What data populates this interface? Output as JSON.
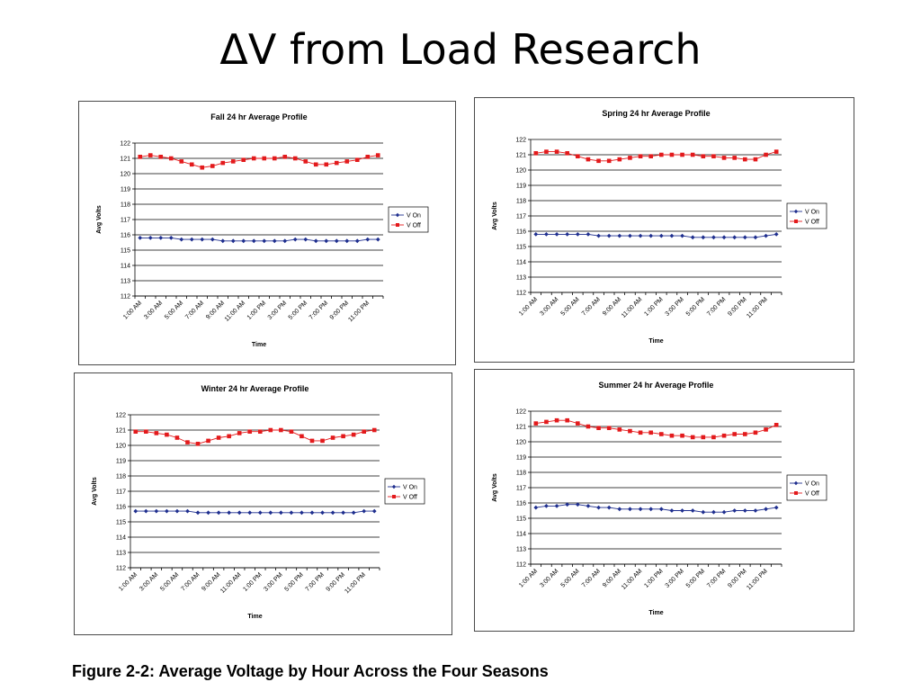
{
  "slide": {
    "title": "ΔV from Load Research",
    "caption": "Figure 2-2:  Average Voltage by Hour Across the Four Seasons"
  },
  "colors": {
    "v_on": "#1f2f8f",
    "v_off": "#e31a1c"
  },
  "chart_data": [
    {
      "type": "line",
      "title": "Fall 24 hr Average Profile",
      "xlabel": "Time",
      "ylabel": "Avg Volts",
      "ylim": [
        112,
        122
      ],
      "yticks": [
        112,
        113,
        114,
        115,
        116,
        117,
        118,
        119,
        120,
        121,
        122
      ],
      "grid": true,
      "legend": "right",
      "x": [
        "1:00 AM",
        "2:00 AM",
        "3:00 AM",
        "4:00 AM",
        "5:00 AM",
        "6:00 AM",
        "7:00 AM",
        "8:00 AM",
        "9:00 AM",
        "10:00 AM",
        "11:00 AM",
        "12:00 PM",
        "1:00 PM",
        "2:00 PM",
        "3:00 PM",
        "4:00 PM",
        "5:00 PM",
        "6:00 PM",
        "7:00 PM",
        "8:00 PM",
        "9:00 PM",
        "10:00 PM",
        "11:00 PM",
        "12:00 AM"
      ],
      "xtick_labels": [
        "1:00 AM",
        "3:00 AM",
        "5:00 AM",
        "7:00 AM",
        "9:00 AM",
        "11:00 AM",
        "1:00 PM",
        "3:00 PM",
        "5:00 PM",
        "7:00 PM",
        "9:00 PM",
        "11:00 PM"
      ],
      "series": [
        {
          "name": "V On",
          "values": [
            115.8,
            115.8,
            115.8,
            115.8,
            115.7,
            115.7,
            115.7,
            115.7,
            115.6,
            115.6,
            115.6,
            115.6,
            115.6,
            115.6,
            115.6,
            115.7,
            115.7,
            115.6,
            115.6,
            115.6,
            115.6,
            115.6,
            115.7,
            115.7
          ]
        },
        {
          "name": "V Off",
          "values": [
            121.1,
            121.2,
            121.1,
            121.0,
            120.8,
            120.6,
            120.4,
            120.5,
            120.7,
            120.8,
            120.9,
            121.0,
            121.0,
            121.0,
            121.1,
            121.0,
            120.8,
            120.6,
            120.6,
            120.7,
            120.8,
            120.9,
            121.1,
            121.2
          ]
        }
      ]
    },
    {
      "type": "line",
      "title": "Spring 24 hr Average Profile",
      "xlabel": "Time",
      "ylabel": "Avg Volts",
      "ylim": [
        112,
        122
      ],
      "yticks": [
        112,
        113,
        114,
        115,
        116,
        117,
        118,
        119,
        120,
        121,
        122
      ],
      "grid": true,
      "legend": "right",
      "x": [
        "1:00 AM",
        "2:00 AM",
        "3:00 AM",
        "4:00 AM",
        "5:00 AM",
        "6:00 AM",
        "7:00 AM",
        "8:00 AM",
        "9:00 AM",
        "10:00 AM",
        "11:00 AM",
        "12:00 PM",
        "1:00 PM",
        "2:00 PM",
        "3:00 PM",
        "4:00 PM",
        "5:00 PM",
        "6:00 PM",
        "7:00 PM",
        "8:00 PM",
        "9:00 PM",
        "10:00 PM",
        "11:00 PM",
        "12:00 AM"
      ],
      "xtick_labels": [
        "1:00 AM",
        "3:00 AM",
        "5:00 AM",
        "7:00 AM",
        "9:00 AM",
        "11:00 AM",
        "1:00 PM",
        "3:00 PM",
        "5:00 PM",
        "7:00 PM",
        "9:00 PM",
        "11:00 PM"
      ],
      "series": [
        {
          "name": "V On",
          "values": [
            115.8,
            115.8,
            115.8,
            115.8,
            115.8,
            115.8,
            115.7,
            115.7,
            115.7,
            115.7,
            115.7,
            115.7,
            115.7,
            115.7,
            115.7,
            115.6,
            115.6,
            115.6,
            115.6,
            115.6,
            115.6,
            115.6,
            115.7,
            115.8
          ]
        },
        {
          "name": "V Off",
          "values": [
            121.1,
            121.2,
            121.2,
            121.1,
            120.9,
            120.7,
            120.6,
            120.6,
            120.7,
            120.8,
            120.9,
            120.9,
            121.0,
            121.0,
            121.0,
            121.0,
            120.9,
            120.9,
            120.8,
            120.8,
            120.7,
            120.7,
            121.0,
            121.2
          ]
        }
      ]
    },
    {
      "type": "line",
      "title": "Winter 24 hr Average Profile",
      "xlabel": "Time",
      "ylabel": "Avg Volts",
      "ylim": [
        112,
        122
      ],
      "yticks": [
        112,
        113,
        114,
        115,
        116,
        117,
        118,
        119,
        120,
        121,
        122
      ],
      "grid": true,
      "legend": "right",
      "x": [
        "1:00 AM",
        "2:00 AM",
        "3:00 AM",
        "4:00 AM",
        "5:00 AM",
        "6:00 AM",
        "7:00 AM",
        "8:00 AM",
        "9:00 AM",
        "10:00 AM",
        "11:00 AM",
        "12:00 PM",
        "1:00 PM",
        "2:00 PM",
        "3:00 PM",
        "4:00 PM",
        "5:00 PM",
        "6:00 PM",
        "7:00 PM",
        "8:00 PM",
        "9:00 PM",
        "10:00 PM",
        "11:00 PM",
        "12:00 AM"
      ],
      "xtick_labels": [
        "1:00 AM",
        "3:00 AM",
        "5:00 AM",
        "7:00 AM",
        "9:00 AM",
        "11:00 AM",
        "1:00 PM",
        "3:00 PM",
        "5:00 PM",
        "7:00 PM",
        "9:00 PM",
        "11:00 PM"
      ],
      "series": [
        {
          "name": "V On",
          "values": [
            115.7,
            115.7,
            115.7,
            115.7,
            115.7,
            115.7,
            115.6,
            115.6,
            115.6,
            115.6,
            115.6,
            115.6,
            115.6,
            115.6,
            115.6,
            115.6,
            115.6,
            115.6,
            115.6,
            115.6,
            115.6,
            115.6,
            115.7,
            115.7
          ]
        },
        {
          "name": "V Off",
          "values": [
            120.9,
            120.9,
            120.8,
            120.7,
            120.5,
            120.2,
            120.1,
            120.3,
            120.5,
            120.6,
            120.8,
            120.9,
            120.9,
            121.0,
            121.0,
            120.9,
            120.6,
            120.3,
            120.3,
            120.5,
            120.6,
            120.7,
            120.9,
            121.0
          ]
        }
      ]
    },
    {
      "type": "line",
      "title": "Summer 24 hr Average Profile",
      "xlabel": "Time",
      "ylabel": "Avg Volts",
      "ylim": [
        112,
        122
      ],
      "yticks": [
        112,
        113,
        114,
        115,
        116,
        117,
        118,
        119,
        120,
        121,
        122
      ],
      "grid": true,
      "legend": "right",
      "x": [
        "1:00 AM",
        "2:00 AM",
        "3:00 AM",
        "4:00 AM",
        "5:00 AM",
        "6:00 AM",
        "7:00 AM",
        "8:00 AM",
        "9:00 AM",
        "10:00 AM",
        "11:00 AM",
        "12:00 PM",
        "1:00 PM",
        "2:00 PM",
        "3:00 PM",
        "4:00 PM",
        "5:00 PM",
        "6:00 PM",
        "7:00 PM",
        "8:00 PM",
        "9:00 PM",
        "10:00 PM",
        "11:00 PM",
        "12:00 AM"
      ],
      "xtick_labels": [
        "1:00 AM",
        "3:00 AM",
        "5:00 AM",
        "7:00 AM",
        "9:00 AM",
        "11:00 AM",
        "1:00 PM",
        "3:00 PM",
        "5:00 PM",
        "7:00 PM",
        "9:00 PM",
        "11:00 PM"
      ],
      "series": [
        {
          "name": "V On",
          "values": [
            115.7,
            115.8,
            115.8,
            115.9,
            115.9,
            115.8,
            115.7,
            115.7,
            115.6,
            115.6,
            115.6,
            115.6,
            115.6,
            115.5,
            115.5,
            115.5,
            115.4,
            115.4,
            115.4,
            115.5,
            115.5,
            115.5,
            115.6,
            115.7
          ]
        },
        {
          "name": "V Off",
          "values": [
            121.2,
            121.3,
            121.4,
            121.4,
            121.2,
            121.0,
            120.9,
            120.9,
            120.8,
            120.7,
            120.6,
            120.6,
            120.5,
            120.4,
            120.4,
            120.3,
            120.3,
            120.3,
            120.4,
            120.5,
            120.5,
            120.6,
            120.8,
            121.1
          ]
        }
      ]
    }
  ]
}
